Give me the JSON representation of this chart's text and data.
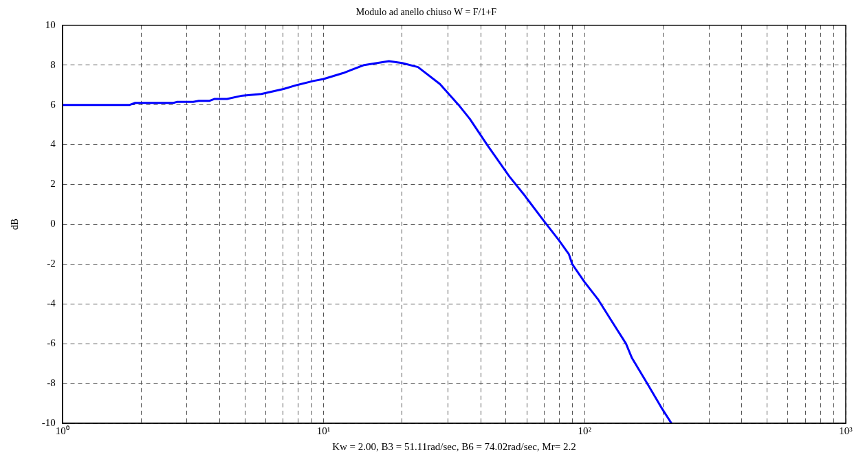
{
  "chart_data": {
    "type": "line",
    "title": "Modulo ad anello chiuso W = F/1+F",
    "xlabel": "Kw = 2.00, B3 = 51.11rad/sec, B6 = 74.02rad/sec, Mr= 2.2",
    "ylabel": "dB",
    "x": [
      1,
      1.81,
      1.9,
      2.66,
      2.75,
      3.17,
      3.33,
      3.65,
      3.83,
      4.27,
      4.82,
      5.78,
      7.03,
      7.92,
      9.13,
      10,
      11.9,
      14.3,
      17.8,
      20,
      23,
      27.9,
      32.9,
      36.3,
      42.3,
      51.5,
      58.5,
      69.5,
      79.7,
      87,
      89.6,
      99.9,
      112.9,
      127.4,
      144,
      151.5,
      173.6,
      196.5,
      215
    ],
    "series": [
      {
        "color": "#0000ff",
        "values": [
          6.0,
          6.0,
          6.1,
          6.1,
          6.15,
          6.15,
          6.2,
          6.2,
          6.3,
          6.3,
          6.45,
          6.55,
          6.8,
          7.0,
          7.2,
          7.3,
          7.6,
          8.0,
          8.2,
          8.1,
          7.9,
          7.05,
          6.0,
          5.3,
          4.0,
          2.4,
          1.5,
          0.2,
          -0.8,
          -1.5,
          -2.0,
          -2.9,
          -3.8,
          -4.9,
          -6.0,
          -6.7,
          -8.0,
          -9.2,
          -10.0
        ]
      }
    ],
    "log": "x",
    "xlim": [
      1,
      1000
    ],
    "xticks": [
      {
        "value": 1,
        "label": "10⁰"
      },
      {
        "value": 2,
        "label": null
      },
      {
        "value": 3,
        "label": null
      },
      {
        "value": 4,
        "label": null
      },
      {
        "value": 5,
        "label": null
      },
      {
        "value": 6,
        "label": null
      },
      {
        "value": 7,
        "label": null
      },
      {
        "value": 8,
        "label": null
      },
      {
        "value": 9,
        "label": null
      },
      {
        "value": 10,
        "label": "10¹"
      },
      {
        "value": 20,
        "label": null
      },
      {
        "value": 30,
        "label": null
      },
      {
        "value": 40,
        "label": null
      },
      {
        "value": 50,
        "label": null
      },
      {
        "value": 60,
        "label": null
      },
      {
        "value": 70,
        "label": null
      },
      {
        "value": 80,
        "label": null
      },
      {
        "value": 90,
        "label": null
      },
      {
        "value": 100,
        "label": "10²"
      },
      {
        "value": 200,
        "label": null
      },
      {
        "value": 300,
        "label": null
      },
      {
        "value": 400,
        "label": null
      },
      {
        "value": 500,
        "label": null
      },
      {
        "value": 600,
        "label": null
      },
      {
        "value": 700,
        "label": null
      },
      {
        "value": 800,
        "label": null
      },
      {
        "value": 900,
        "label": null
      },
      {
        "value": 1000,
        "label": "10³"
      }
    ],
    "ylim": [
      -10,
      10
    ],
    "yticks": [
      -10,
      -8,
      -6,
      -4,
      -2,
      0,
      2,
      4,
      6,
      8,
      10
    ],
    "grid": true,
    "legend": false,
    "marker": "none",
    "line_style": "solid"
  }
}
